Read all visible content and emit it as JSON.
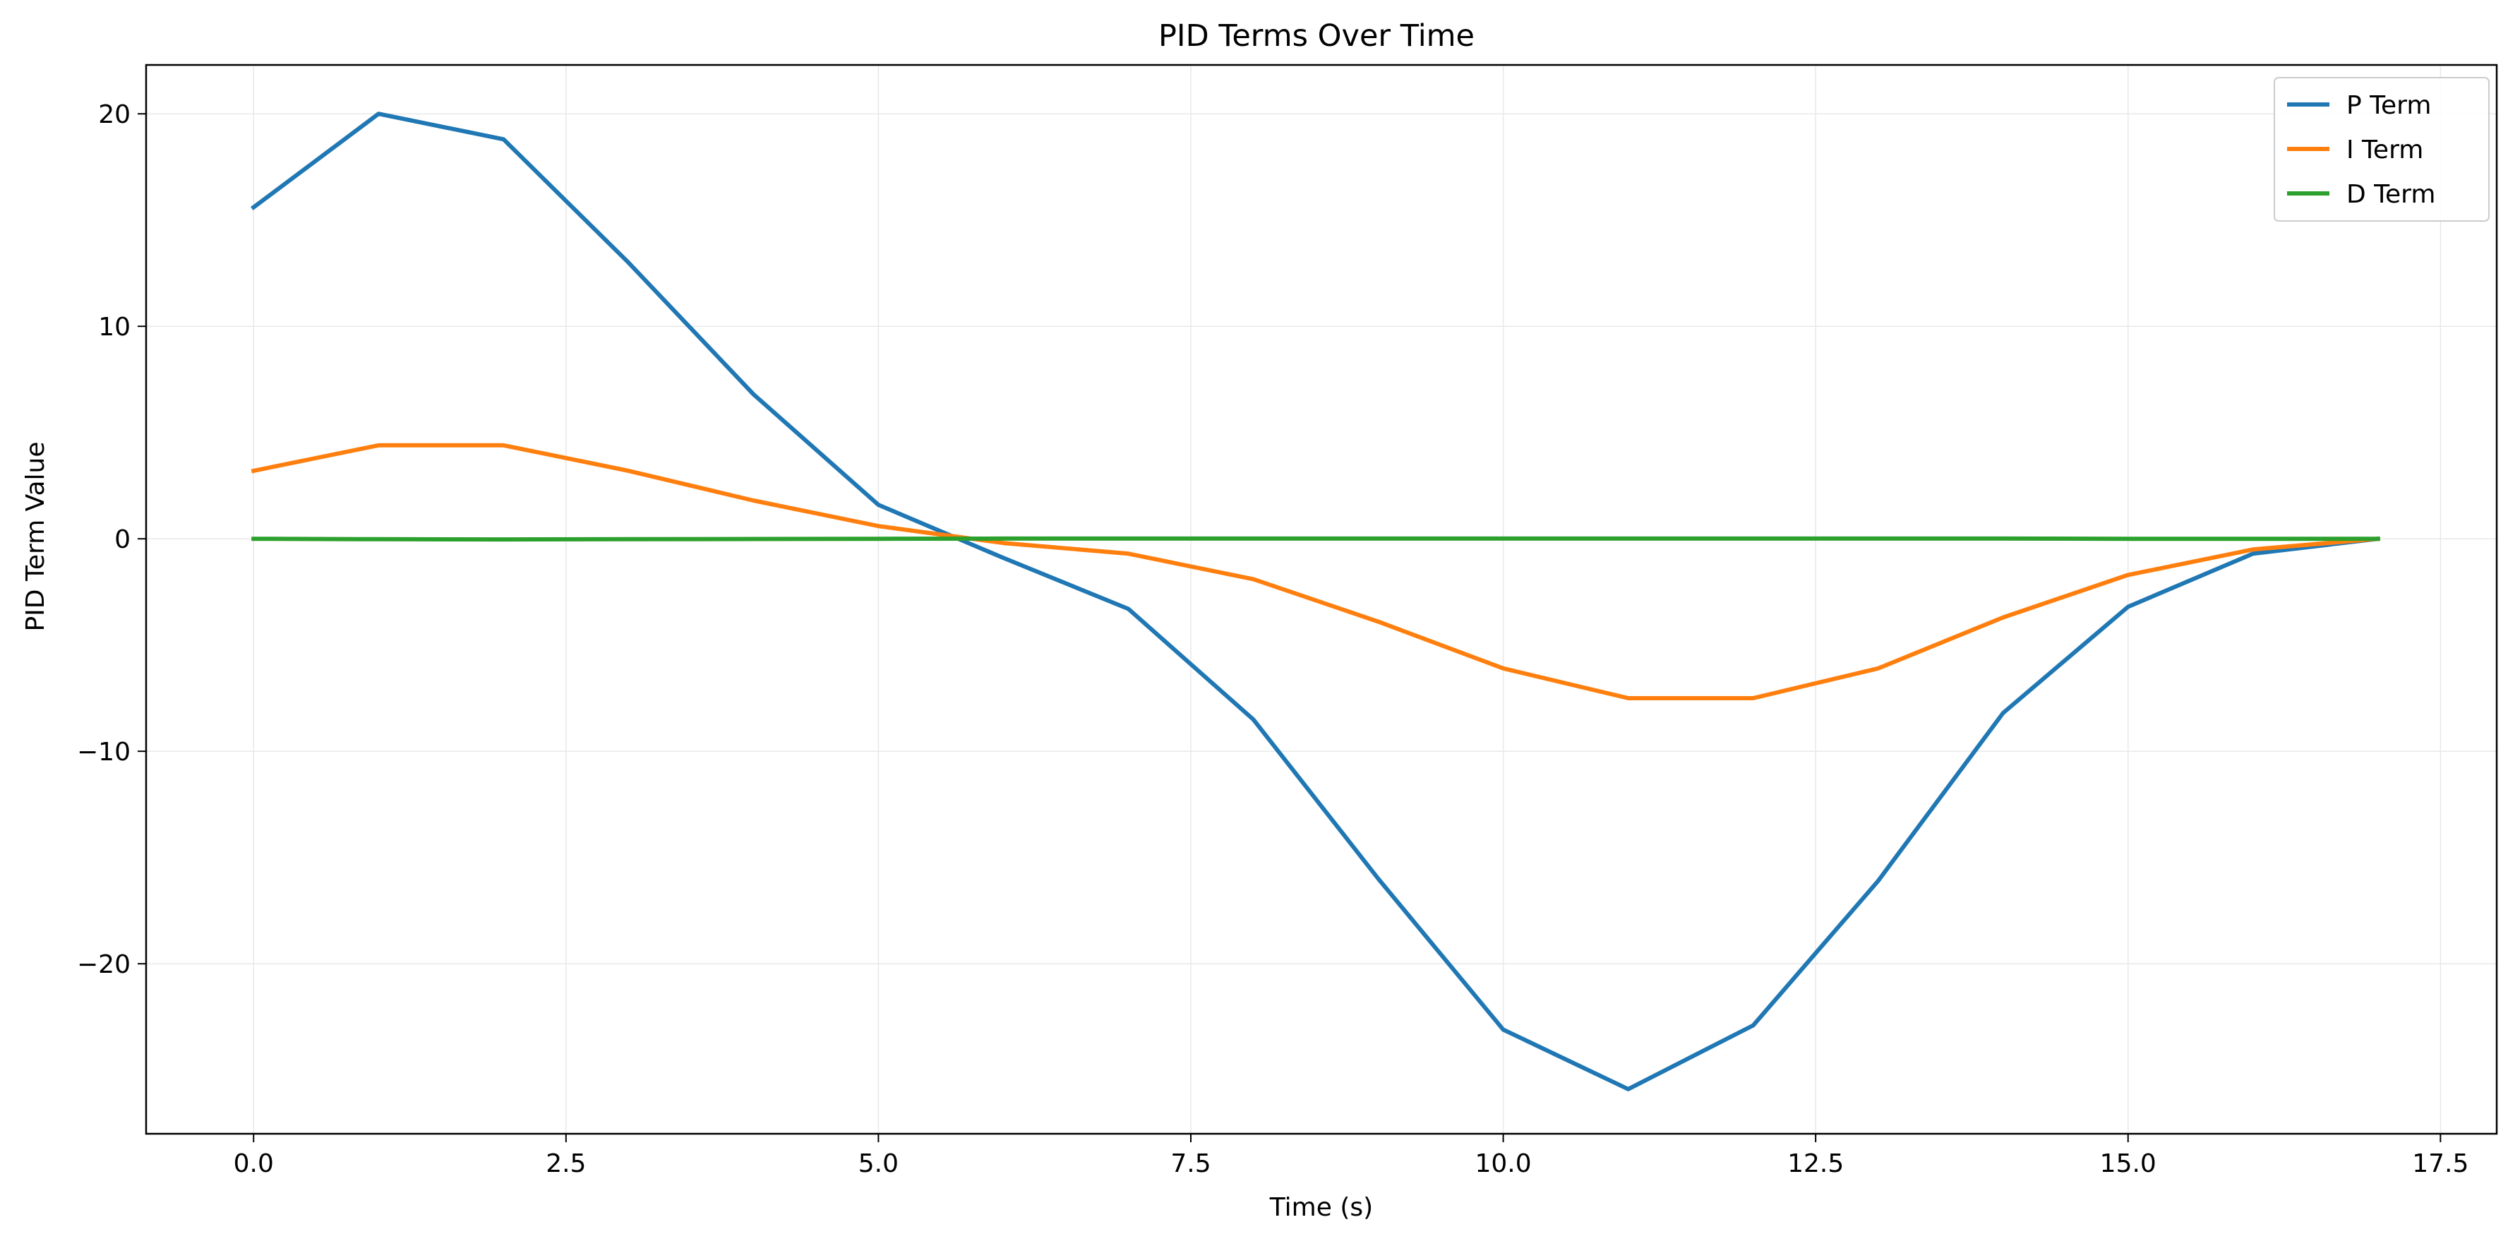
{
  "chart_data": {
    "type": "line",
    "title": "PID Terms Over Time",
    "xlabel": "Time (s)",
    "ylabel": "PID Term Value",
    "xlim": [
      -0.86,
      17.95
    ],
    "ylim": [
      -28.0,
      22.3
    ],
    "xticks": [
      0.0,
      2.5,
      5.0,
      7.5,
      10.0,
      12.5,
      15.0,
      17.5
    ],
    "xtick_labels": [
      "0.0",
      "2.5",
      "5.0",
      "7.5",
      "10.0",
      "12.5",
      "15.0",
      "17.5"
    ],
    "yticks": [
      -20,
      -10,
      0,
      10,
      20
    ],
    "ytick_labels": [
      "−20",
      "−10",
      "0",
      "10",
      "20"
    ],
    "grid": true,
    "legend_position": "top-right",
    "series": [
      {
        "name": "P Term",
        "color": "#1f77b4",
        "x": [
          0.0,
          1.0,
          2.0,
          3.0,
          4.0,
          5.0,
          6.0,
          7.0,
          8.0,
          9.0,
          10.0,
          11.0,
          12.0,
          13.0,
          14.0,
          15.0,
          16.0,
          17.0
        ],
        "y": [
          15.6,
          20.0,
          18.8,
          13.0,
          6.8,
          1.6,
          -0.9,
          -3.3,
          -8.5,
          -16.0,
          -23.1,
          -25.9,
          -22.9,
          -16.1,
          -8.2,
          -3.2,
          -0.7,
          0.0
        ]
      },
      {
        "name": "I Term",
        "color": "#ff7f0e",
        "x": [
          0.0,
          1.0,
          2.0,
          3.0,
          4.0,
          5.0,
          6.0,
          7.0,
          8.0,
          9.0,
          10.0,
          11.0,
          12.0,
          13.0,
          14.0,
          15.0,
          16.0,
          17.0
        ],
        "y": [
          3.2,
          4.4,
          4.4,
          3.2,
          1.8,
          0.6,
          -0.2,
          -0.7,
          -1.9,
          -3.9,
          -6.1,
          -7.5,
          -7.5,
          -6.1,
          -3.7,
          -1.7,
          -0.5,
          0.0
        ]
      },
      {
        "name": "D Term",
        "color": "#2ca02c",
        "x": [
          0.0,
          1.0,
          2.0,
          3.0,
          4.0,
          5.0,
          6.0,
          7.0,
          8.0,
          9.0,
          10.0,
          11.0,
          12.0,
          13.0,
          14.0,
          15.0,
          16.0,
          17.0
        ],
        "y": [
          0.0,
          -0.02,
          -0.03,
          -0.02,
          -0.01,
          0.0,
          0.01,
          0.01,
          0.01,
          0.01,
          0.01,
          0.01,
          0.01,
          0.01,
          0.01,
          0.0,
          0.0,
          0.0
        ]
      }
    ]
  }
}
